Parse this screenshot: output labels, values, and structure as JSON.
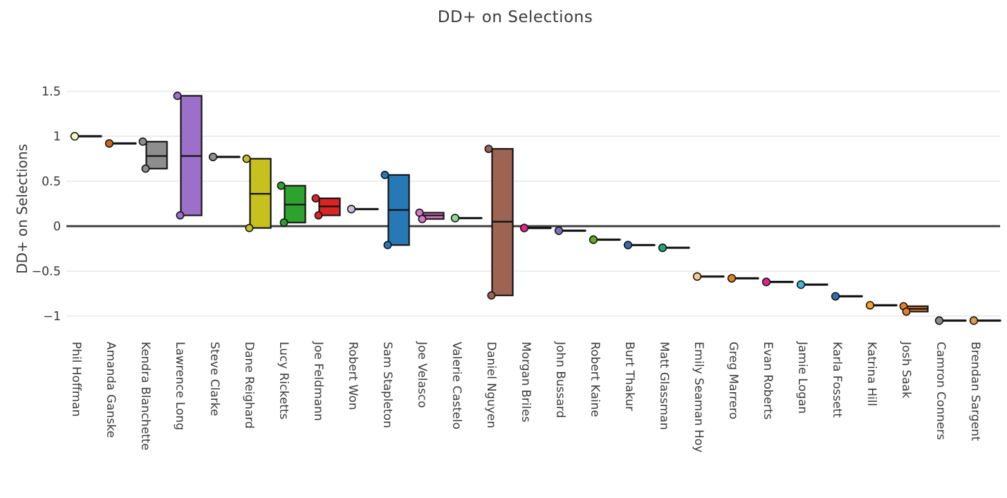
{
  "title": "DD+ on Selections",
  "chart_data": {
    "type": "box",
    "title": "DD+ on Selections",
    "ylabel": "DD+ on Selections",
    "xlabel": "",
    "ylim": [
      -1.2,
      1.65
    ],
    "yticks": [
      1.5,
      1,
      0.5,
      0,
      -0.5,
      -1
    ],
    "grid": "horizontal-light",
    "zero_line": true,
    "legend": "none",
    "categories": [
      "Phil Hoffman",
      "Amanda Ganske",
      "Kendra Blanchette",
      "Lawrence Long",
      "Steve Clarke",
      "Dane Reighard",
      "Lucy Ricketts",
      "Joe Feldmann",
      "Robert Won",
      "Sam Stapleton",
      "Joe Velasco",
      "Valerie Castelo",
      "Daniel Nguyen",
      "Morgan Briles",
      "John Bussard",
      "Robert Kaine",
      "Burt Thakur",
      "Matt Glassman",
      "Emily Seaman Hoy",
      "Greg Marrero",
      "Evan Roberts",
      "Jamie Logan",
      "Karla Fossett",
      "Katrina Hill",
      "Josh Saak",
      "Camron Conners",
      "Brendan Sargent"
    ],
    "entries": [
      {
        "name": "Phil Hoffman",
        "color": "#ffffc5",
        "low": 1.0,
        "high": 1.0,
        "median": null
      },
      {
        "name": "Amanda Ganske",
        "color": "#cd661d",
        "low": 0.92,
        "high": 0.92,
        "median": null
      },
      {
        "name": "Kendra Blanchette",
        "color": "#8e8e8e",
        "low": 0.64,
        "high": 0.94,
        "median": 0.78
      },
      {
        "name": "Lawrence Long",
        "color": "#9c70c9",
        "low": 0.12,
        "high": 1.45,
        "median": 0.78
      },
      {
        "name": "Steve Clarke",
        "color": "#8e8e8e",
        "low": 0.77,
        "high": 0.77,
        "median": null
      },
      {
        "name": "Dane Reighard",
        "color": "#c6c11f",
        "low": -0.02,
        "high": 0.75,
        "median": 0.36
      },
      {
        "name": "Lucy Ricketts",
        "color": "#2ea22e",
        "low": 0.04,
        "high": 0.45,
        "median": 0.24
      },
      {
        "name": "Joe Feldmann",
        "color": "#dc2424",
        "low": 0.12,
        "high": 0.31,
        "median": 0.22
      },
      {
        "name": "Robert Won",
        "color": "#cabddc",
        "low": 0.19,
        "high": 0.19,
        "median": null
      },
      {
        "name": "Sam Stapleton",
        "color": "#2779b5",
        "low": -0.21,
        "high": 0.57,
        "median": 0.18
      },
      {
        "name": "Joe Velasco",
        "color": "#d878c8",
        "low": 0.08,
        "high": 0.15,
        "median": 0.12
      },
      {
        "name": "Valerie Castelo",
        "color": "#90d995",
        "low": 0.09,
        "high": 0.09,
        "median": null
      },
      {
        "name": "Daniel Nguyen",
        "color": "#9d6454",
        "low": -0.77,
        "high": 0.86,
        "median": 0.05
      },
      {
        "name": "Morgan Briles",
        "color": "#e52289",
        "low": -0.02,
        "high": -0.02,
        "median": null
      },
      {
        "name": "John Bussard",
        "color": "#7b70ba",
        "low": -0.05,
        "high": -0.05,
        "median": null
      },
      {
        "name": "Robert Kaine",
        "color": "#69a821",
        "low": -0.15,
        "high": -0.15,
        "median": null
      },
      {
        "name": "Burt Thakur",
        "color": "#3b69b1",
        "low": -0.21,
        "high": -0.21,
        "median": null
      },
      {
        "name": "Matt Glassman",
        "color": "#21a475",
        "low": -0.24,
        "high": -0.24,
        "median": null
      },
      {
        "name": "Emily Seaman Hoy",
        "color": "#fcc98b",
        "low": -0.56,
        "high": -0.56,
        "median": null
      },
      {
        "name": "Greg Marrero",
        "color": "#e5831f",
        "low": -0.58,
        "high": -0.58,
        "median": null
      },
      {
        "name": "Evan Roberts",
        "color": "#e0228b",
        "low": -0.62,
        "high": -0.62,
        "median": null
      },
      {
        "name": "Jamie Logan",
        "color": "#3eb5d9",
        "low": -0.65,
        "high": -0.65,
        "median": null
      },
      {
        "name": "Karla Fossett",
        "color": "#2f6db5",
        "low": -0.78,
        "high": -0.78,
        "median": null
      },
      {
        "name": "Katrina Hill",
        "color": "#f3a72f",
        "low": -0.88,
        "high": -0.88,
        "median": null
      },
      {
        "name": "Josh Saak",
        "color": "#e87e29",
        "low": -0.95,
        "high": -0.89,
        "median": -0.92
      },
      {
        "name": "Camron Conners",
        "color": "#8e8e8e",
        "low": -1.05,
        "high": -1.05,
        "median": null
      },
      {
        "name": "Brendan Sargent",
        "color": "#e19b4e",
        "low": -1.05,
        "high": -1.05,
        "median": null
      }
    ],
    "colors": {
      "grid_line": "#e7e7e7",
      "zero_line": "#3f3f3f",
      "mark_stroke": "#151515",
      "text": "#3a3a3a"
    }
  }
}
